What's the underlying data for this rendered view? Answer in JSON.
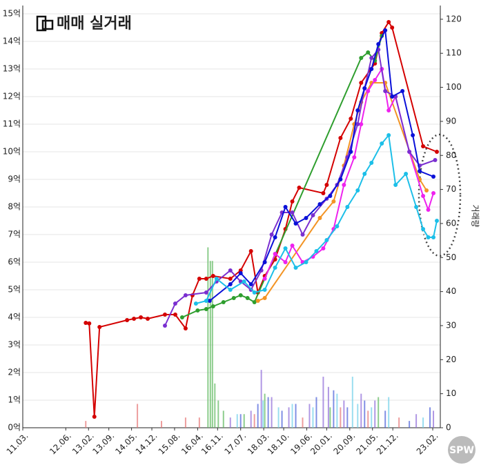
{
  "chart_data": {
    "type": "line",
    "title": "매매 실거래",
    "y2label": "거래량",
    "watermark": "SPW",
    "xlim": [
      2011.17,
      2023.3
    ],
    "xticks": [
      {
        "value": 2011.17,
        "label": "11.03."
      },
      {
        "value": 2012.42,
        "label": "12.06."
      },
      {
        "value": 2013.08,
        "label": "13.02."
      },
      {
        "value": 2013.67,
        "label": "13.09."
      },
      {
        "value": 2014.33,
        "label": "14.05."
      },
      {
        "value": 2014.92,
        "label": "14.12."
      },
      {
        "value": 2015.58,
        "label": "15.08."
      },
      {
        "value": 2016.25,
        "label": "16.04."
      },
      {
        "value": 2016.83,
        "label": "16.11."
      },
      {
        "value": 2017.5,
        "label": "17.07."
      },
      {
        "value": 2018.17,
        "label": "18.03."
      },
      {
        "value": 2018.75,
        "label": "18.10."
      },
      {
        "value": 2019.42,
        "label": "19.06."
      },
      {
        "value": 2020.0,
        "label": "20.01."
      },
      {
        "value": 2020.67,
        "label": "20.09."
      },
      {
        "value": 2021.33,
        "label": "21.05."
      },
      {
        "value": 2021.92,
        "label": "21.12."
      },
      {
        "value": 2023.08,
        "label": "23.02."
      }
    ],
    "ylim": [
      0,
      15
    ],
    "yticks": [
      {
        "value": 0,
        "label": "0억"
      },
      {
        "value": 1,
        "label": "1억"
      },
      {
        "value": 2,
        "label": "2억"
      },
      {
        "value": 3,
        "label": "3억"
      },
      {
        "value": 4,
        "label": "4억"
      },
      {
        "value": 5,
        "label": "5억"
      },
      {
        "value": 6,
        "label": "6억"
      },
      {
        "value": 7,
        "label": "7억"
      },
      {
        "value": 8,
        "label": "8억"
      },
      {
        "value": 9,
        "label": "9억"
      },
      {
        "value": 10,
        "label": "10억"
      },
      {
        "value": 11,
        "label": "11억"
      },
      {
        "value": 12,
        "label": "12억"
      },
      {
        "value": 13,
        "label": "13억"
      },
      {
        "value": 14,
        "label": "14억"
      },
      {
        "value": 15,
        "label": "15억"
      }
    ],
    "y2lim": [
      0,
      121.6
    ],
    "y2ticks": [
      0,
      10,
      20,
      30,
      40,
      50,
      60,
      70,
      80,
      90,
      100,
      110,
      120
    ],
    "grid": true,
    "series": [
      {
        "type": "bar",
        "axis": "y2",
        "color": "#5cb85c",
        "x": [
          2016.55,
          2016.62,
          2016.68,
          2016.75,
          2016.85,
          2017.0,
          2017.6,
          2018.2,
          2020.1,
          2021.5
        ],
        "values": [
          53,
          49,
          49,
          13,
          8,
          5,
          4,
          10,
          6,
          9
        ]
      },
      {
        "type": "bar",
        "axis": "y2",
        "color": "#e57373",
        "x": [
          2013.0,
          2014.5,
          2015.2,
          2015.9,
          2016.3,
          2017.9,
          2019.3,
          2020.4,
          2021.2,
          2022.1
        ],
        "values": [
          2,
          7,
          2,
          3,
          3,
          4,
          3,
          6,
          5,
          3
        ]
      },
      {
        "type": "bar",
        "axis": "y2",
        "color": "#8e6bd8",
        "x": [
          2017.2,
          2017.8,
          2018.1,
          2018.4,
          2018.9,
          2019.5,
          2019.9,
          2020.05,
          2020.5,
          2021.0,
          2021.4,
          2022.6,
          2023.1
        ],
        "values": [
          3,
          5,
          17,
          9,
          6,
          7,
          15,
          12,
          8,
          10,
          8,
          4,
          5
        ]
      },
      {
        "type": "bar",
        "axis": "y2",
        "color": "#4a5fd8",
        "x": [
          2017.5,
          2018.0,
          2018.3,
          2018.7,
          2019.1,
          2019.7,
          2020.2,
          2020.6,
          2021.1,
          2021.7,
          2022.4,
          2023.0
        ],
        "values": [
          4,
          7,
          9,
          5,
          7,
          9,
          11,
          6,
          8,
          5,
          2,
          6
        ]
      },
      {
        "type": "bar",
        "axis": "y2",
        "color": "#6fd0ea",
        "x": [
          2017.4,
          2018.15,
          2018.6,
          2019.0,
          2019.6,
          2020.3,
          2020.75,
          2020.9,
          2021.3,
          2021.8,
          2022.8
        ],
        "values": [
          4,
          8,
          6,
          7,
          6,
          10,
          15,
          7,
          6,
          9,
          3
        ]
      },
      {
        "type": "line",
        "color": "#d40000",
        "x": [
          2013.0,
          2013.1,
          2013.25,
          2013.4,
          2014.2,
          2014.4,
          2014.6,
          2014.8,
          2015.3,
          2015.6,
          2015.9,
          2016.1,
          2016.3,
          2016.5,
          2016.7,
          2017.2,
          2017.5,
          2017.8,
          2018.0,
          2018.2,
          2018.5,
          2018.8,
          2019.0,
          2019.2,
          2019.9,
          2020.0,
          2020.4,
          2020.7,
          2021.0,
          2021.4,
          2021.6,
          2021.8,
          2021.9,
          2022.8,
          2023.2
        ],
        "values": [
          3.8,
          3.78,
          0.4,
          3.65,
          3.9,
          3.95,
          4.0,
          3.95,
          4.1,
          4.1,
          3.6,
          4.8,
          5.4,
          5.4,
          5.5,
          5.4,
          5.7,
          6.4,
          4.9,
          5.5,
          6.1,
          7.2,
          8.2,
          8.7,
          8.5,
          8.8,
          10.5,
          11.2,
          12.5,
          13.2,
          14.3,
          14.7,
          14.5,
          10.2,
          10.0
        ]
      },
      {
        "type": "line",
        "color": "#2e9e2e",
        "x": [
          2015.8,
          2016.25,
          2016.5,
          2016.7,
          2017.0,
          2017.3,
          2017.5,
          2017.7,
          2017.9,
          2021.0,
          2021.2,
          2021.4,
          2021.6
        ],
        "values": [
          4.0,
          4.25,
          4.3,
          4.4,
          4.55,
          4.7,
          4.8,
          4.7,
          4.55,
          13.4,
          13.6,
          13.3,
          14.2
        ]
      },
      {
        "type": "line",
        "color": "#f39424",
        "x": [
          2018.0,
          2018.2,
          2019.8,
          2020.2,
          2020.5,
          2020.8,
          2021.0,
          2021.3,
          2021.7,
          2022.7,
          2022.9
        ],
        "values": [
          4.6,
          4.7,
          7.6,
          8.2,
          9.5,
          11.0,
          11.8,
          12.5,
          12.5,
          9.0,
          8.6
        ]
      },
      {
        "type": "line",
        "color": "#ee22ee",
        "x": [
          2018.2,
          2018.5,
          2018.8,
          2019.0,
          2019.3,
          2019.6,
          2019.9,
          2020.2,
          2020.5,
          2020.8,
          2021.0,
          2021.2,
          2021.4,
          2021.6,
          2021.8,
          2022.0,
          2022.4,
          2022.8,
          2022.95,
          2023.1
        ],
        "values": [
          5.4,
          6.3,
          6.0,
          6.6,
          6.0,
          6.2,
          6.5,
          7.2,
          8.8,
          9.8,
          11.0,
          12.2,
          12.6,
          13.0,
          11.5,
          12.0,
          10.0,
          8.4,
          7.9,
          8.5
        ]
      },
      {
        "type": "line",
        "color": "#7a2fd0",
        "x": [
          2015.3,
          2015.6,
          2015.9,
          2016.5,
          2016.8,
          2017.2,
          2017.5,
          2017.8,
          2018.1,
          2018.4,
          2018.7,
          2019.0,
          2019.3,
          2019.6,
          2020.0,
          2020.3,
          2020.6,
          2020.9,
          2021.1,
          2021.3,
          2021.5,
          2021.7,
          2022.0,
          2022.4,
          2022.7,
          2023.15
        ],
        "values": [
          3.7,
          4.5,
          4.8,
          4.9,
          5.3,
          5.7,
          5.3,
          5.0,
          5.7,
          7.0,
          7.8,
          7.8,
          7.0,
          7.7,
          8.3,
          8.8,
          9.8,
          11.0,
          12.3,
          13.4,
          13.7,
          12.2,
          12.0,
          10.0,
          9.5,
          9.7
        ]
      },
      {
        "type": "line",
        "color": "#0a10d8",
        "x": [
          2016.6,
          2017.2,
          2017.5,
          2017.8,
          2018.2,
          2018.5,
          2018.8,
          2019.1,
          2019.4,
          2019.8,
          2020.1,
          2020.4,
          2020.7,
          2020.9,
          2021.1,
          2021.3,
          2021.5,
          2021.7,
          2021.9,
          2022.2,
          2022.5,
          2022.7,
          2023.1
        ],
        "values": [
          4.6,
          5.2,
          5.6,
          5.2,
          6.0,
          6.9,
          8.0,
          7.4,
          7.6,
          8.1,
          8.4,
          9.0,
          10.0,
          11.5,
          12.3,
          13.0,
          13.9,
          14.4,
          12.0,
          12.2,
          10.6,
          9.3,
          9.1
        ]
      },
      {
        "type": "line",
        "color": "#1cbfe8",
        "x": [
          2016.2,
          2016.5,
          2016.8,
          2017.2,
          2017.6,
          2017.9,
          2018.2,
          2018.5,
          2018.8,
          2019.1,
          2019.4,
          2019.7,
          2020.0,
          2020.3,
          2020.6,
          2020.9,
          2021.1,
          2021.3,
          2021.6,
          2021.8,
          2022.0,
          2022.3,
          2022.6,
          2022.8,
          2022.95,
          2023.1,
          2023.2
        ],
        "values": [
          4.5,
          4.6,
          5.4,
          5.0,
          5.3,
          4.9,
          5.0,
          5.8,
          6.5,
          5.8,
          6.0,
          6.4,
          6.8,
          7.3,
          8.0,
          8.6,
          9.2,
          9.6,
          10.3,
          10.6,
          8.8,
          9.2,
          8.0,
          7.2,
          6.9,
          6.9,
          7.5
        ]
      }
    ]
  }
}
